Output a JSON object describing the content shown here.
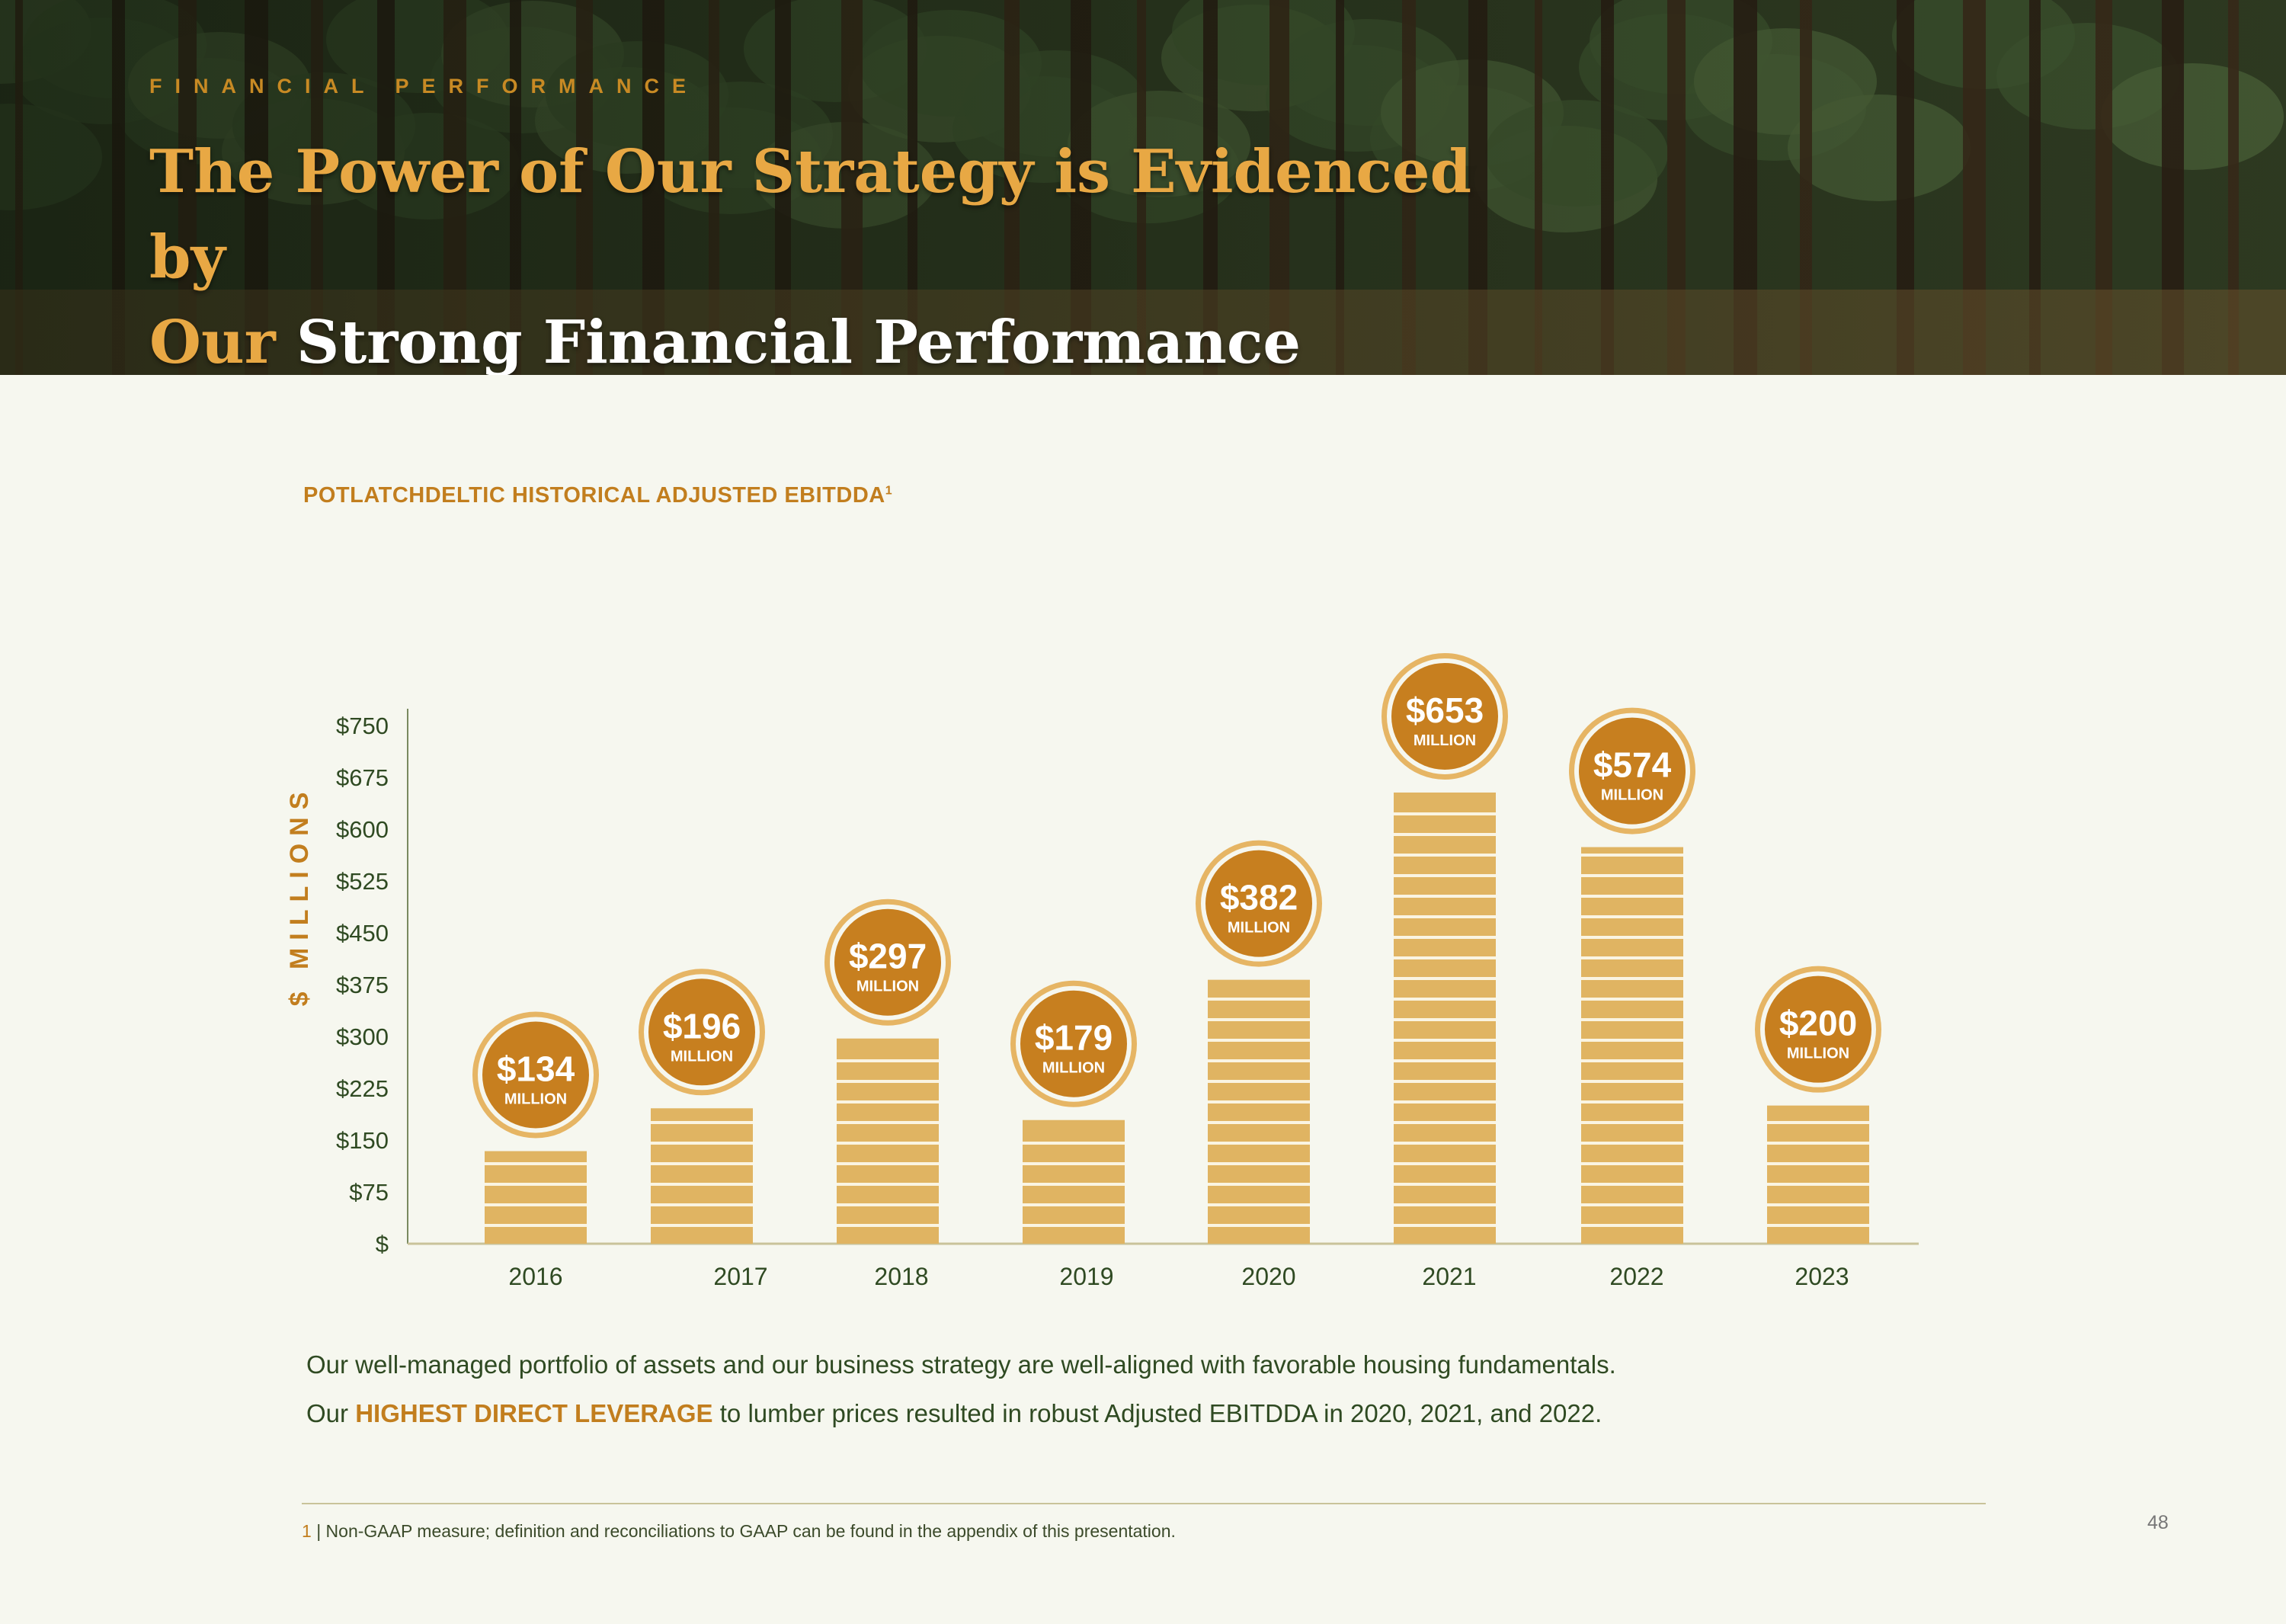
{
  "header": {
    "section_label": "FINANCIAL PERFORMANCE",
    "title_part1": "The Power of Our Strategy is Evidenced by",
    "title_part2": "Our",
    "title_part3": "Strong Financial Performance"
  },
  "chart_title": "POTLATCHDELTIC HISTORICAL ADJUSTED EBITDDA",
  "chart_title_sup": "1",
  "chart_data": {
    "type": "bar",
    "ylabel": "$ MILLIONS",
    "ylim": [
      0,
      750
    ],
    "yticks": [
      0,
      75,
      150,
      225,
      300,
      375,
      450,
      525,
      600,
      675,
      750
    ],
    "ytick_labels": [
      "$",
      "$75",
      "$150",
      "$225",
      "$300",
      "$375",
      "$450",
      "$525",
      "$600",
      "$675",
      "$750"
    ],
    "categories": [
      "2016",
      "2017",
      "2018",
      "2019",
      "2020",
      "2021",
      "2022",
      "2023"
    ],
    "values": [
      134,
      196,
      297,
      179,
      382,
      653,
      574,
      200
    ],
    "data_labels": [
      "$134",
      "$196",
      "$297",
      "$179",
      "$382",
      "$653",
      "$574",
      "$200"
    ],
    "data_label_unit": "MILLION",
    "grid": false,
    "colors": {
      "bar": "#e0b462",
      "bar_stripe": "#faf4e2",
      "badge": "#c77f1f",
      "badge_ring": "#e6b564",
      "axis_text": "#2f4a22",
      "axis_title": "#c27e1e"
    }
  },
  "body": {
    "line1": "Our well-managed portfolio of assets and our business strategy are well-aligned with favorable housing fundamentals.",
    "line2_prefix": "Our",
    "line2_highlight": "HIGHEST DIRECT LEVERAGE",
    "line2_suffix": "to lumber prices resulted in robust Adjusted EBITDDA in 2020, 2021, and 2022."
  },
  "footnote": {
    "number": "1",
    "text": "| Non-GAAP measure; definition and reconciliations to GAAP can be found in the appendix of this presentation."
  },
  "page_number": "48"
}
